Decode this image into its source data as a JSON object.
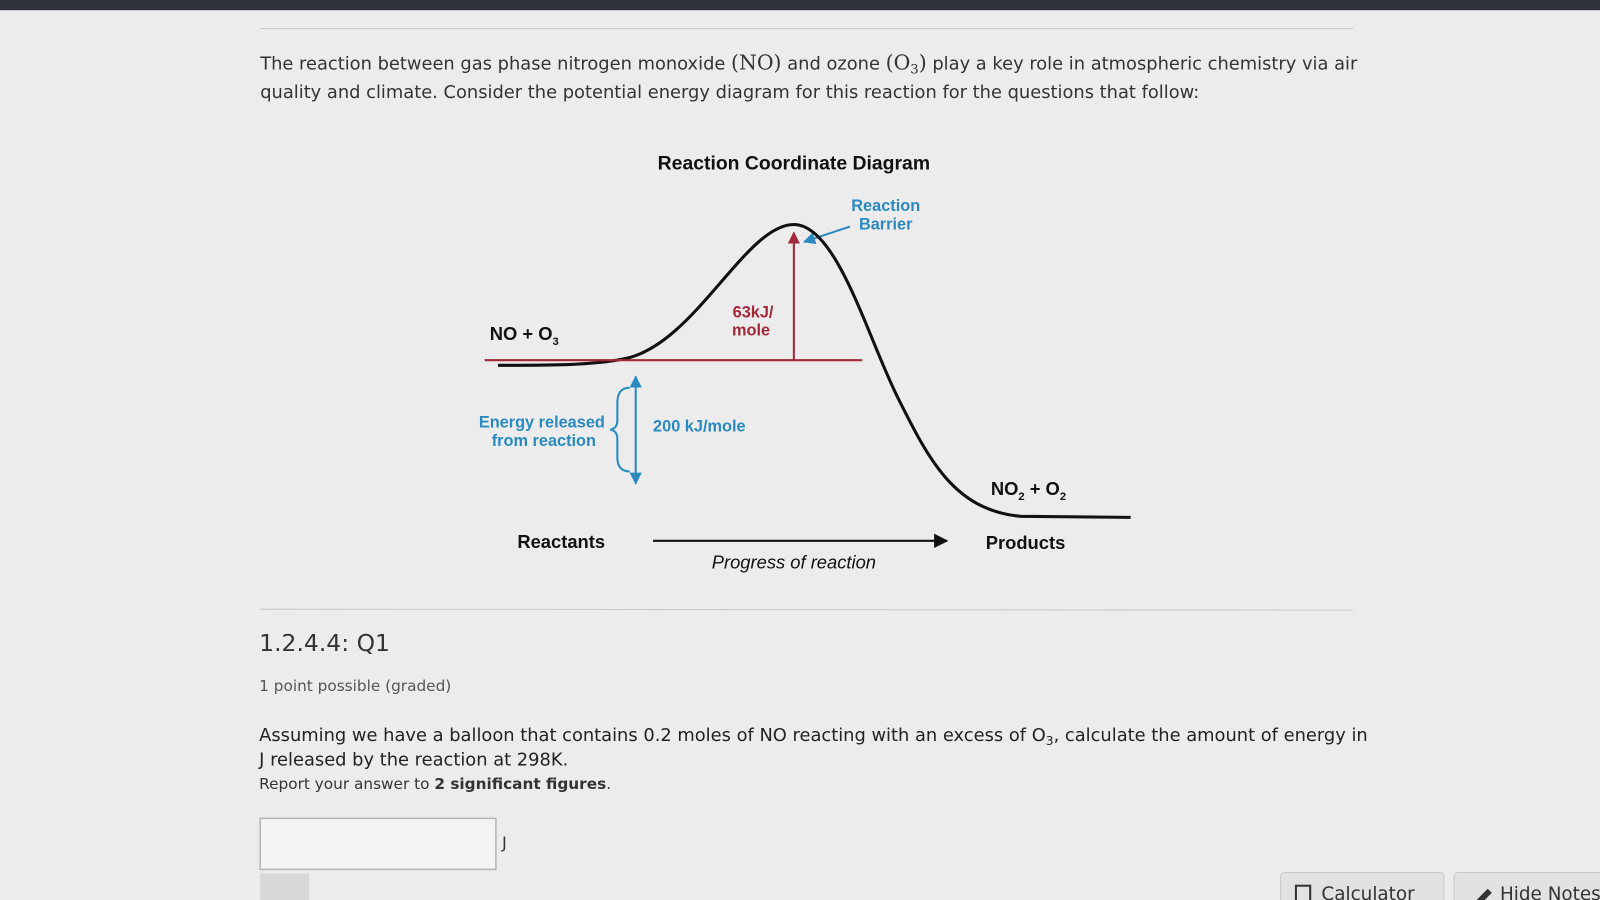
{
  "intro": {
    "line1": [
      "The reaction between gas phase nitrogen monoxide ",
      "(NO)",
      " and ozone ",
      "(O",
      "3",
      ")",
      " play a key role in atmospheric chemistry via air"
    ],
    "line2": "quality and climate. Consider the potential energy diagram for this reaction for the questions that follow:"
  },
  "diagram": {
    "title": "Reaction Coordinate Diagram",
    "barrier_label": [
      "Reaction",
      "Barrier"
    ],
    "reactant_formula": [
      "NO + O",
      "3"
    ],
    "barrier_energy": [
      "63kJ/",
      "mole"
    ],
    "released_label": [
      "Energy released",
      "from reaction"
    ],
    "released_energy": "200 kJ/mole",
    "product_formula": [
      "NO",
      "2",
      " + O",
      "2"
    ],
    "start_label": "Reactants",
    "axis_label": "Progress of reaction",
    "end_label": "Products"
  },
  "problem": {
    "number": "1.2.4.4: Q1",
    "points": "1 point possible (graded)",
    "question_line1": [
      "Assuming we have a balloon that contains 0.2 moles of NO reacting with an excess of O",
      "3",
      ", calculate the amount of energy in"
    ],
    "question_line2": "J released by the reaction at 298K.",
    "instruction": [
      "Report your answer to ",
      "2 significant figures",
      "."
    ],
    "unit": "J"
  },
  "toolbar": {
    "calculator": "Calculator",
    "hide_notes": "Hide Notes"
  }
}
